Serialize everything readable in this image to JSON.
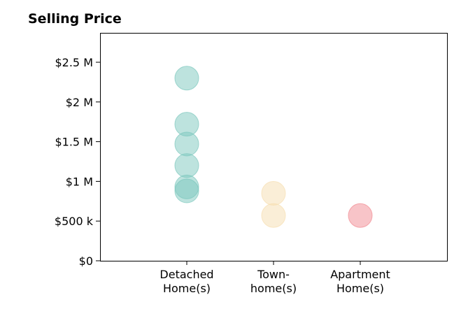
{
  "chart_data": {
    "type": "scatter",
    "title": "Selling Price",
    "xlabel": "",
    "ylabel": "",
    "categories": [
      {
        "lines": [
          "Detached",
          "Home(s)"
        ]
      },
      {
        "lines": [
          "Town-",
          "home(s)"
        ]
      },
      {
        "lines": [
          "Apartment",
          "Home(s)"
        ]
      }
    ],
    "yticks": [
      {
        "value": 0,
        "label": "$0"
      },
      {
        "value": 500000,
        "label": "$500 k"
      },
      {
        "value": 1000000,
        "label": "$1 M"
      },
      {
        "value": 1500000,
        "label": "$1.5 M"
      },
      {
        "value": 2000000,
        "label": "$2 M"
      },
      {
        "value": 2500000,
        "label": "$2.5 M"
      }
    ],
    "ylim": [
      0,
      2870000
    ],
    "xlim": [
      -1,
      3
    ],
    "grid": false,
    "series": [
      {
        "category": 0,
        "color": "#7cc8bd",
        "values": [
          2300000,
          1720000,
          1470000,
          1200000,
          930000,
          880000
        ]
      },
      {
        "category": 1,
        "color": "#f6deb0",
        "values": [
          850000,
          570000
        ]
      },
      {
        "category": 2,
        "color": "#f18a91",
        "values": [
          570000
        ]
      }
    ]
  }
}
